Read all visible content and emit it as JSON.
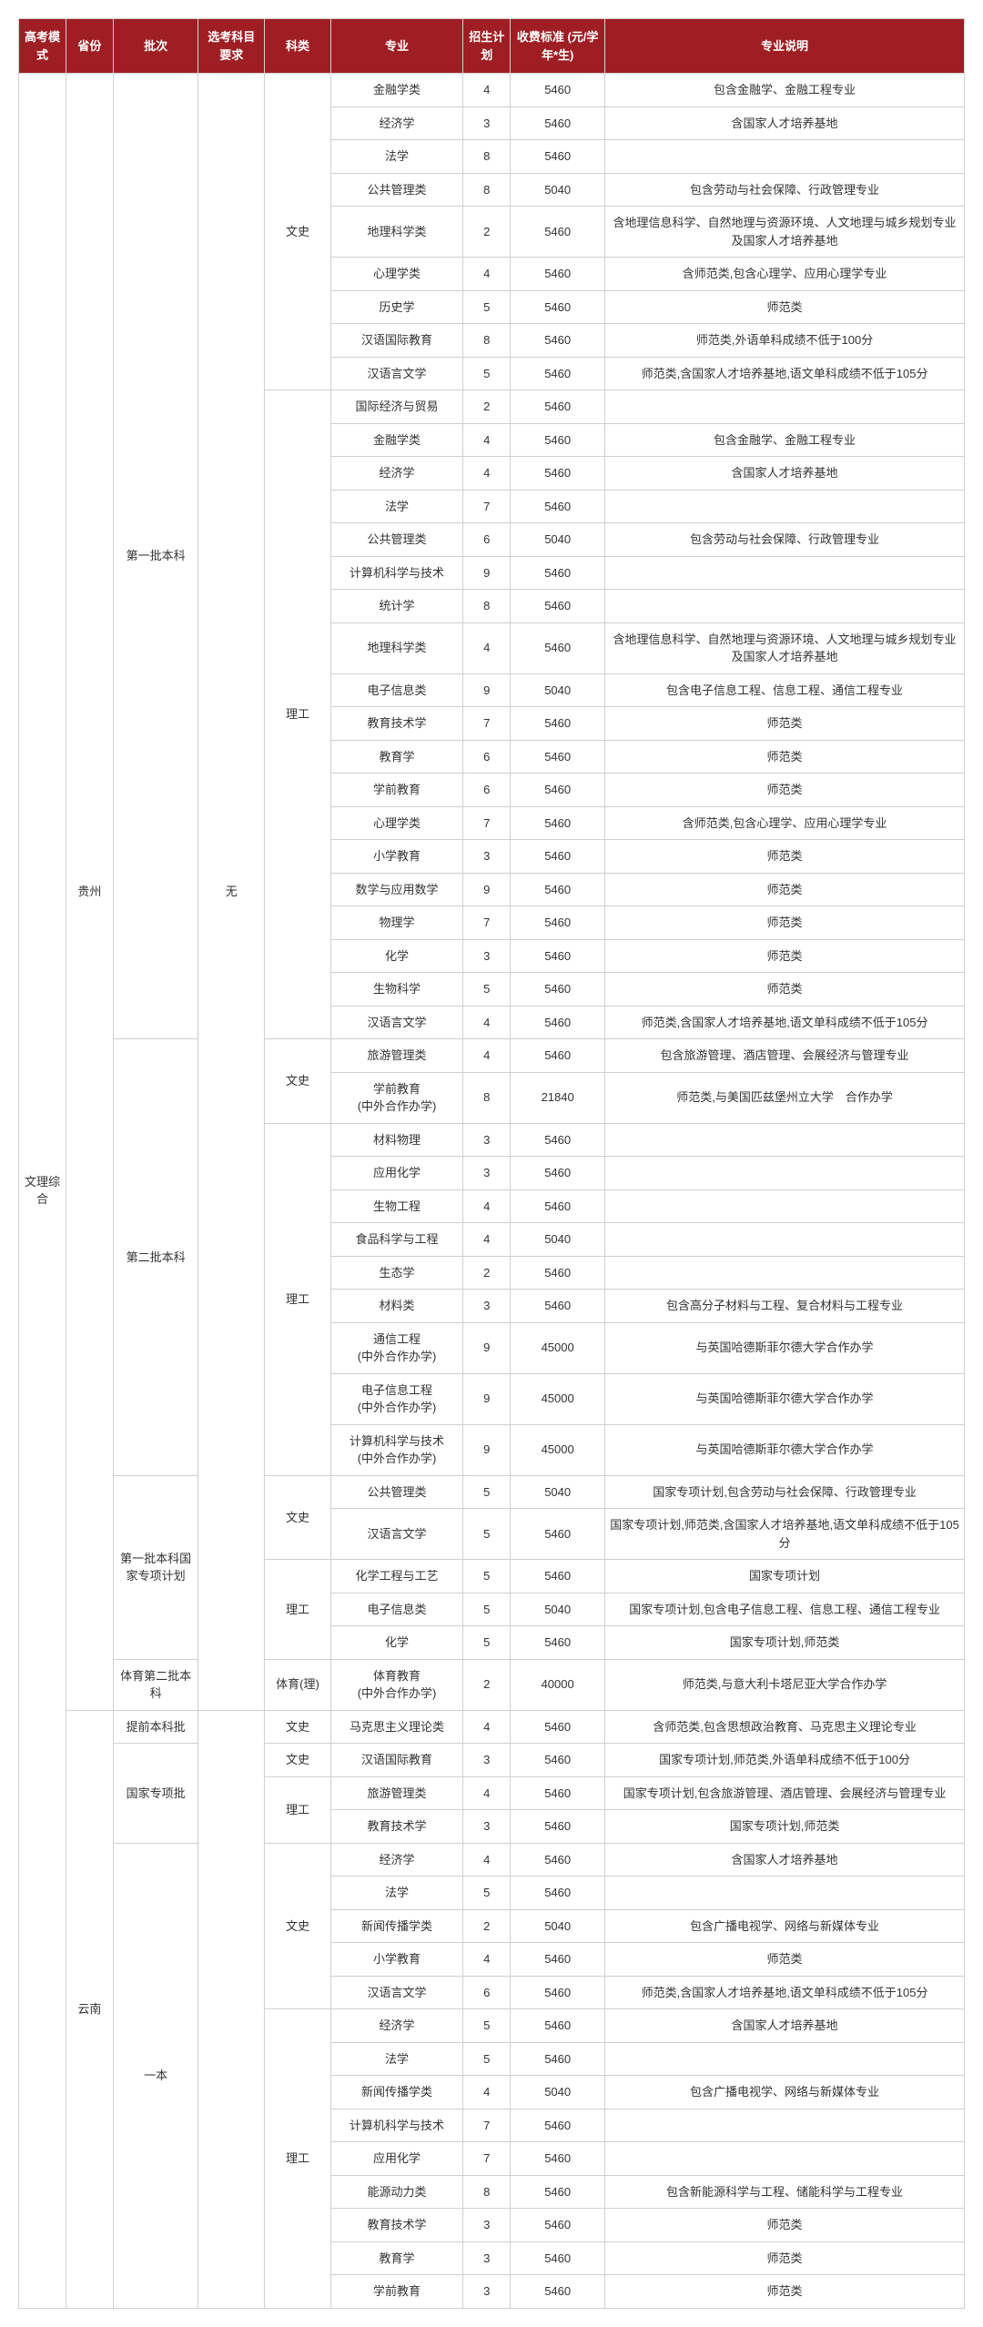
{
  "header": {
    "mode": "高考模式",
    "province": "省份",
    "batch": "批次",
    "req": "选考科目要求",
    "category": "科类",
    "major": "专业",
    "plan": "招生计划",
    "fee": "收费标准\n(元/学年*生)",
    "desc": "专业说明"
  },
  "mode": "文理综合",
  "provinces": [
    {
      "name": "贵州",
      "req": "无",
      "batches": [
        {
          "name": "第一批本科",
          "cats": [
            {
              "name": "文史",
              "rows": [
                {
                  "major": "金融学类",
                  "plan": "4",
                  "fee": "5460",
                  "desc": "包含金融学、金融工程专业"
                },
                {
                  "major": "经济学",
                  "plan": "3",
                  "fee": "5460",
                  "desc": "含国家人才培养基地"
                },
                {
                  "major": "法学",
                  "plan": "8",
                  "fee": "5460",
                  "desc": ""
                },
                {
                  "major": "公共管理类",
                  "plan": "8",
                  "fee": "5040",
                  "desc": "包含劳动与社会保障、行政管理专业"
                },
                {
                  "major": "地理科学类",
                  "plan": "2",
                  "fee": "5460",
                  "desc": "含地理信息科学、自然地理与资源环境、人文地理与城乡规划专业及国家人才培养基地"
                },
                {
                  "major": "心理学类",
                  "plan": "4",
                  "fee": "5460",
                  "desc": "含师范类,包含心理学、应用心理学专业"
                },
                {
                  "major": "历史学",
                  "plan": "5",
                  "fee": "5460",
                  "desc": "师范类"
                },
                {
                  "major": "汉语国际教育",
                  "plan": "8",
                  "fee": "5460",
                  "desc": "师范类,外语单科成绩不低于100分"
                },
                {
                  "major": "汉语言文学",
                  "plan": "5",
                  "fee": "5460",
                  "desc": "师范类,含国家人才培养基地,语文单科成绩不低于105分"
                }
              ]
            },
            {
              "name": "理工",
              "rows": [
                {
                  "major": "国际经济与贸易",
                  "plan": "2",
                  "fee": "5460",
                  "desc": ""
                },
                {
                  "major": "金融学类",
                  "plan": "4",
                  "fee": "5460",
                  "desc": "包含金融学、金融工程专业"
                },
                {
                  "major": "经济学",
                  "plan": "4",
                  "fee": "5460",
                  "desc": "含国家人才培养基地"
                },
                {
                  "major": "法学",
                  "plan": "7",
                  "fee": "5460",
                  "desc": ""
                },
                {
                  "major": "公共管理类",
                  "plan": "6",
                  "fee": "5040",
                  "desc": "包含劳动与社会保障、行政管理专业"
                },
                {
                  "major": "计算机科学与技术",
                  "plan": "9",
                  "fee": "5460",
                  "desc": ""
                },
                {
                  "major": "统计学",
                  "plan": "8",
                  "fee": "5460",
                  "desc": ""
                },
                {
                  "major": "地理科学类",
                  "plan": "4",
                  "fee": "5460",
                  "desc": "含地理信息科学、自然地理与资源环境、人文地理与城乡规划专业及国家人才培养基地"
                },
                {
                  "major": "电子信息类",
                  "plan": "9",
                  "fee": "5040",
                  "desc": "包含电子信息工程、信息工程、通信工程专业"
                },
                {
                  "major": "教育技术学",
                  "plan": "7",
                  "fee": "5460",
                  "desc": "师范类"
                },
                {
                  "major": "教育学",
                  "plan": "6",
                  "fee": "5460",
                  "desc": "师范类"
                },
                {
                  "major": "学前教育",
                  "plan": "6",
                  "fee": "5460",
                  "desc": "师范类"
                },
                {
                  "major": "心理学类",
                  "plan": "7",
                  "fee": "5460",
                  "desc": "含师范类,包含心理学、应用心理学专业"
                },
                {
                  "major": "小学教育",
                  "plan": "3",
                  "fee": "5460",
                  "desc": "师范类"
                },
                {
                  "major": "数学与应用数学",
                  "plan": "9",
                  "fee": "5460",
                  "desc": "师范类"
                },
                {
                  "major": "物理学",
                  "plan": "7",
                  "fee": "5460",
                  "desc": "师范类"
                },
                {
                  "major": "化学",
                  "plan": "3",
                  "fee": "5460",
                  "desc": "师范类"
                },
                {
                  "major": "生物科学",
                  "plan": "5",
                  "fee": "5460",
                  "desc": "师范类"
                },
                {
                  "major": "汉语言文学",
                  "plan": "4",
                  "fee": "5460",
                  "desc": "师范类,含国家人才培养基地,语文单科成绩不低于105分"
                }
              ]
            }
          ]
        },
        {
          "name": "第二批本科",
          "cats": [
            {
              "name": "文史",
              "rows": [
                {
                  "major": "旅游管理类",
                  "plan": "4",
                  "fee": "5460",
                  "desc": "包含旅游管理、酒店管理、会展经济与管理专业"
                },
                {
                  "major": "学前教育\n(中外合作办学)",
                  "plan": "8",
                  "fee": "21840",
                  "desc": "师范类,与美国匹兹堡州立大学　合作办学"
                }
              ]
            },
            {
              "name": "理工",
              "rows": [
                {
                  "major": "材料物理",
                  "plan": "3",
                  "fee": "5460",
                  "desc": ""
                },
                {
                  "major": "应用化学",
                  "plan": "3",
                  "fee": "5460",
                  "desc": ""
                },
                {
                  "major": "生物工程",
                  "plan": "4",
                  "fee": "5460",
                  "desc": ""
                },
                {
                  "major": "食品科学与工程",
                  "plan": "4",
                  "fee": "5040",
                  "desc": ""
                },
                {
                  "major": "生态学",
                  "plan": "2",
                  "fee": "5460",
                  "desc": ""
                },
                {
                  "major": "材料类",
                  "plan": "3",
                  "fee": "5460",
                  "desc": "包含高分子材料与工程、复合材料与工程专业"
                },
                {
                  "major": "通信工程\n(中外合作办学)",
                  "plan": "9",
                  "fee": "45000",
                  "desc": "与英国哈德斯菲尔德大学合作办学"
                },
                {
                  "major": "电子信息工程\n(中外合作办学)",
                  "plan": "9",
                  "fee": "45000",
                  "desc": "与英国哈德斯菲尔德大学合作办学"
                },
                {
                  "major": "计算机科学与技术\n(中外合作办学)",
                  "plan": "9",
                  "fee": "45000",
                  "desc": "与英国哈德斯菲尔德大学合作办学"
                }
              ]
            }
          ]
        },
        {
          "name": "第一批本科国家专项计划",
          "cats": [
            {
              "name": "文史",
              "rows": [
                {
                  "major": "公共管理类",
                  "plan": "5",
                  "fee": "5040",
                  "desc": "国家专项计划,包含劳动与社会保障、行政管理专业"
                },
                {
                  "major": "汉语言文学",
                  "plan": "5",
                  "fee": "5460",
                  "desc": "国家专项计划,师范类,含国家人才培养基地,语文单科成绩不低于105分"
                }
              ]
            },
            {
              "name": "理工",
              "rows": [
                {
                  "major": "化学工程与工艺",
                  "plan": "5",
                  "fee": "5460",
                  "desc": "国家专项计划"
                },
                {
                  "major": "电子信息类",
                  "plan": "5",
                  "fee": "5040",
                  "desc": "国家专项计划,包含电子信息工程、信息工程、通信工程专业"
                },
                {
                  "major": "化学",
                  "plan": "5",
                  "fee": "5460",
                  "desc": "国家专项计划,师范类"
                }
              ]
            }
          ]
        },
        {
          "name": "体育第二批本科",
          "cats": [
            {
              "name": "体育(理)",
              "rows": [
                {
                  "major": "体育教育\n(中外合作办学)",
                  "plan": "2",
                  "fee": "40000",
                  "desc": "师范类,与意大利卡塔尼亚大学合作办学"
                }
              ]
            }
          ]
        }
      ]
    },
    {
      "name": "云南",
      "req": "",
      "batches": [
        {
          "name": "提前本科批",
          "cats": [
            {
              "name": "文史",
              "rows": [
                {
                  "major": "马克思主义理论类",
                  "plan": "4",
                  "fee": "5460",
                  "desc": "含师范类,包含思想政治教育、马克思主义理论专业"
                }
              ]
            }
          ]
        },
        {
          "name": "国家专项批",
          "cats": [
            {
              "name": "文史",
              "rows": [
                {
                  "major": "汉语国际教育",
                  "plan": "3",
                  "fee": "5460",
                  "desc": "国家专项计划,师范类,外语单科成绩不低于100分"
                }
              ]
            },
            {
              "name": "理工",
              "rows": [
                {
                  "major": "旅游管理类",
                  "plan": "4",
                  "fee": "5460",
                  "desc": "国家专项计划,包含旅游管理、酒店管理、会展经济与管理专业"
                },
                {
                  "major": "教育技术学",
                  "plan": "3",
                  "fee": "5460",
                  "desc": "国家专项计划,师范类"
                }
              ]
            }
          ]
        },
        {
          "name": "一本",
          "cats": [
            {
              "name": "文史",
              "rows": [
                {
                  "major": "经济学",
                  "plan": "4",
                  "fee": "5460",
                  "desc": "含国家人才培养基地"
                },
                {
                  "major": "法学",
                  "plan": "5",
                  "fee": "5460",
                  "desc": ""
                },
                {
                  "major": "新闻传播学类",
                  "plan": "2",
                  "fee": "5040",
                  "desc": "包含广播电视学、网络与新媒体专业"
                },
                {
                  "major": "小学教育",
                  "plan": "4",
                  "fee": "5460",
                  "desc": "师范类"
                },
                {
                  "major": "汉语言文学",
                  "plan": "6",
                  "fee": "5460",
                  "desc": "师范类,含国家人才培养基地,语文单科成绩不低于105分"
                }
              ]
            },
            {
              "name": "理工",
              "rows": [
                {
                  "major": "经济学",
                  "plan": "5",
                  "fee": "5460",
                  "desc": "含国家人才培养基地"
                },
                {
                  "major": "法学",
                  "plan": "5",
                  "fee": "5460",
                  "desc": ""
                },
                {
                  "major": "新闻传播学类",
                  "plan": "4",
                  "fee": "5040",
                  "desc": "包含广播电视学、网络与新媒体专业"
                },
                {
                  "major": "计算机科学与技术",
                  "plan": "7",
                  "fee": "5460",
                  "desc": ""
                },
                {
                  "major": "应用化学",
                  "plan": "7",
                  "fee": "5460",
                  "desc": ""
                },
                {
                  "major": "能源动力类",
                  "plan": "8",
                  "fee": "5460",
                  "desc": "包含新能源科学与工程、储能科学与工程专业"
                },
                {
                  "major": "教育技术学",
                  "plan": "3",
                  "fee": "5460",
                  "desc": "师范类"
                },
                {
                  "major": "教育学",
                  "plan": "3",
                  "fee": "5460",
                  "desc": "师范类"
                },
                {
                  "major": "学前教育",
                  "plan": "3",
                  "fee": "5460",
                  "desc": "师范类"
                }
              ]
            }
          ]
        }
      ]
    }
  ]
}
